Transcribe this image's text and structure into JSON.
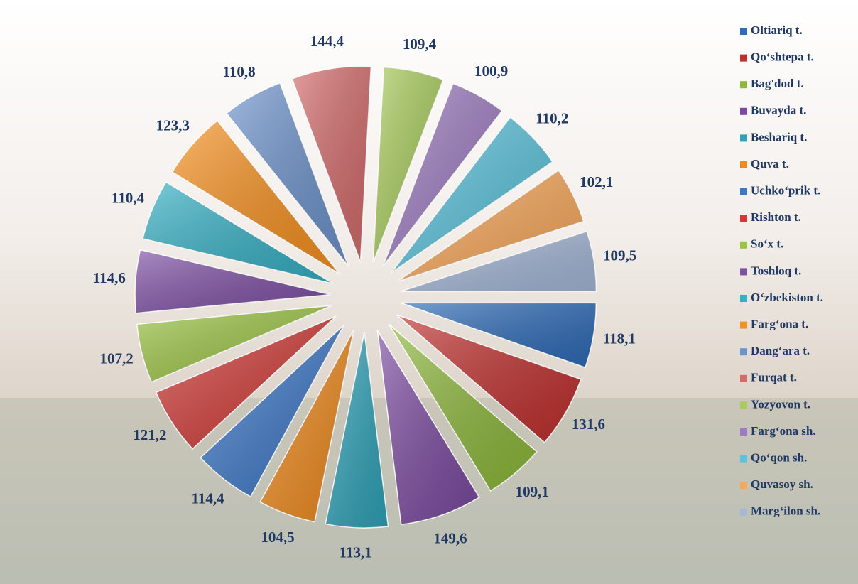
{
  "chart_data": {
    "type": "pie",
    "categories": [
      "Oltiariq t.",
      "Qo‘shtepa t.",
      "Bag'dod t.",
      "Buvayda t.",
      "Beshariq t.",
      "Quva t.",
      "Uchko‘prik t.",
      "Rishton t.",
      "So‘x t.",
      "Toshloq t.",
      "O‘zbekiston t.",
      "Farg‘ona t.",
      "Dang‘ara t.",
      "Furqat t.",
      "Yozyovon t.",
      "Farg‘ona sh.",
      "Qo‘qon sh.",
      "Quvasoy sh.",
      "Marg‘ilon sh."
    ],
    "values": [
      118.1,
      131.6,
      109.1,
      149.6,
      113.1,
      104.5,
      114.4,
      121.2,
      107.2,
      114.6,
      110.4,
      123.3,
      110.8,
      144.4,
      109.4,
      100.9,
      110.2,
      102.1,
      109.5
    ],
    "value_labels": [
      "118,1",
      "131,6",
      "109,1",
      "149,6",
      "113,1",
      "104,5",
      "114,4",
      "121,2",
      "107,2",
      "114,6",
      "110,4",
      "123,3",
      "110,8",
      "144,4",
      "109,4",
      "100,9",
      "110,2",
      "102,1",
      "109,5"
    ],
    "colors": [
      "#2e6bb8",
      "#c0302e",
      "#8db83a",
      "#7b4aa0",
      "#2ea3b8",
      "#f08a1c",
      "#3d78c8",
      "#d13a36",
      "#9bc442",
      "#7e4fa4",
      "#35b0c4",
      "#f7901e",
      "#6d93cc",
      "#d46a6a",
      "#a8cc5a",
      "#9d7bc0",
      "#5ac3dc",
      "#f9a85a",
      "#a5b8d8"
    ],
    "legend": "right"
  }
}
